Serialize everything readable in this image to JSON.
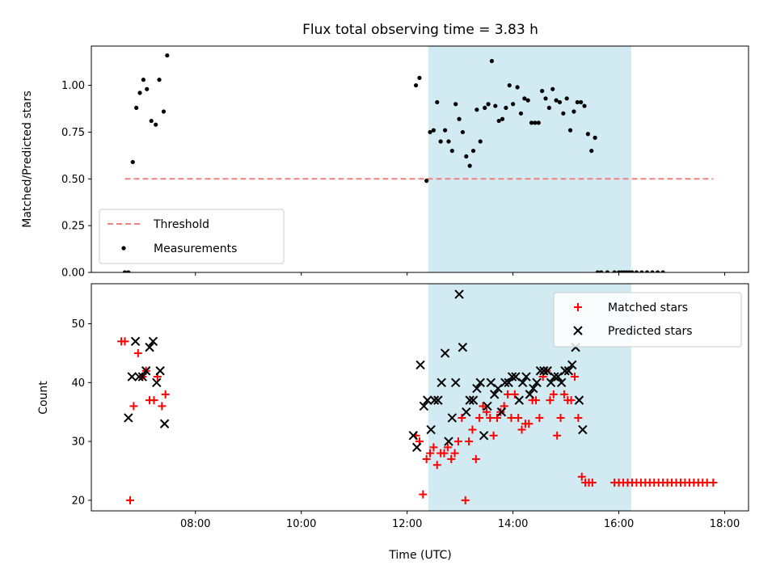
{
  "chart_data": [
    {
      "type": "scatter",
      "title": "Flux total observing time = 3.83 h",
      "xlabel": "",
      "ylabel": "Matched/Predicted stars",
      "xlim": [
        "06:02",
        "18:27"
      ],
      "ylim": [
        0,
        1.21
      ],
      "yticks": [
        "0.00",
        "0.25",
        "0.50",
        "0.75",
        "1.00"
      ],
      "highlight_span": {
        "start": "12:24",
        "end": "16:14",
        "color": "#add8e6"
      },
      "threshold": {
        "name": "Threshold",
        "y": 0.5,
        "x_start": "06:40",
        "x_end": "17:47",
        "color": "#f08080"
      },
      "legend": {
        "placement": "lower left",
        "entries": [
          "Threshold",
          "Measurements"
        ]
      },
      "series": [
        {
          "name": "Measurements",
          "color": "#000000",
          "points": [
            [
              "06:40",
              0.0
            ],
            [
              "06:44",
              0.0
            ],
            [
              "06:49",
              0.59
            ],
            [
              "06:53",
              0.88
            ],
            [
              "06:57",
              0.96
            ],
            [
              "07:01",
              1.03
            ],
            [
              "07:05",
              0.98
            ],
            [
              "07:10",
              0.81
            ],
            [
              "07:15",
              0.79
            ],
            [
              "07:19",
              1.03
            ],
            [
              "07:24",
              0.86
            ],
            [
              "07:28",
              1.16
            ],
            [
              "12:10",
              1.0
            ],
            [
              "12:14",
              1.04
            ],
            [
              "12:22",
              0.49
            ],
            [
              "12:26",
              0.75
            ],
            [
              "12:30",
              0.76
            ],
            [
              "12:34",
              0.91
            ],
            [
              "12:38",
              0.7
            ],
            [
              "12:43",
              0.76
            ],
            [
              "12:47",
              0.7
            ],
            [
              "12:51",
              0.65
            ],
            [
              "12:55",
              0.9
            ],
            [
              "12:59",
              0.82
            ],
            [
              "13:03",
              0.75
            ],
            [
              "13:07",
              0.62
            ],
            [
              "13:11",
              0.57
            ],
            [
              "13:15",
              0.65
            ],
            [
              "13:19",
              0.87
            ],
            [
              "13:23",
              0.7
            ],
            [
              "13:28",
              0.88
            ],
            [
              "13:32",
              0.9
            ],
            [
              "13:36",
              1.13
            ],
            [
              "13:40",
              0.89
            ],
            [
              "13:44",
              0.81
            ],
            [
              "13:48",
              0.82
            ],
            [
              "13:52",
              0.88
            ],
            [
              "13:56",
              1.0
            ],
            [
              "14:00",
              0.9
            ],
            [
              "14:05",
              0.99
            ],
            [
              "14:09",
              0.85
            ],
            [
              "14:13",
              0.93
            ],
            [
              "14:17",
              0.92
            ],
            [
              "14:21",
              0.8
            ],
            [
              "14:25",
              0.8
            ],
            [
              "14:29",
              0.8
            ],
            [
              "14:33",
              0.97
            ],
            [
              "14:37",
              0.93
            ],
            [
              "14:41",
              0.88
            ],
            [
              "14:45",
              0.98
            ],
            [
              "14:49",
              0.92
            ],
            [
              "14:53",
              0.91
            ],
            [
              "14:57",
              0.85
            ],
            [
              "15:01",
              0.93
            ],
            [
              "15:05",
              0.76
            ],
            [
              "15:09",
              0.86
            ],
            [
              "15:13",
              0.91
            ],
            [
              "15:17",
              0.91
            ],
            [
              "15:21",
              0.89
            ],
            [
              "15:25",
              0.74
            ],
            [
              "15:29",
              0.65
            ],
            [
              "15:33",
              0.72
            ],
            [
              "15:36",
              0.0
            ],
            [
              "15:40",
              0.0
            ],
            [
              "15:47",
              0.0
            ],
            [
              "15:55",
              0.0
            ],
            [
              "16:00",
              0.0
            ],
            [
              "16:03",
              0.0
            ],
            [
              "16:06",
              0.0
            ],
            [
              "16:09",
              0.0
            ],
            [
              "16:12",
              0.0
            ],
            [
              "16:15",
              0.0
            ],
            [
              "16:20",
              0.0
            ],
            [
              "16:26",
              0.0
            ],
            [
              "16:32",
              0.0
            ],
            [
              "16:38",
              0.0
            ],
            [
              "16:44",
              0.0
            ],
            [
              "16:50",
              0.0
            ]
          ]
        }
      ]
    },
    {
      "type": "scatter",
      "title": "",
      "xlabel": "Time (UTC)",
      "ylabel": "Count",
      "xlim": [
        "06:02",
        "18:27"
      ],
      "ylim": [
        18.2,
        56.8
      ],
      "yticks": [
        "20",
        "30",
        "40",
        "50"
      ],
      "xticks": [
        "08:00",
        "10:00",
        "12:00",
        "14:00",
        "16:00",
        "18:00"
      ],
      "highlight_span": {
        "start": "12:24",
        "end": "16:14",
        "color": "#add8e6"
      },
      "legend": {
        "placement": "upper right",
        "entries": [
          "Matched stars",
          "Predicted stars"
        ]
      },
      "series": [
        {
          "name": "Matched stars",
          "marker": "plus",
          "color": "#ff0000",
          "points": [
            [
              "06:36",
              47
            ],
            [
              "06:40",
              47
            ],
            [
              "06:46",
              20
            ],
            [
              "06:50",
              36
            ],
            [
              "06:55",
              45
            ],
            [
              "07:00",
              41
            ],
            [
              "07:04",
              42
            ],
            [
              "07:08",
              37
            ],
            [
              "07:13",
              37
            ],
            [
              "07:17",
              41
            ],
            [
              "07:22",
              36
            ],
            [
              "07:26",
              38
            ],
            [
              "12:10",
              31
            ],
            [
              "12:14",
              30
            ],
            [
              "12:18",
              21
            ],
            [
              "12:22",
              27
            ],
            [
              "12:26",
              28
            ],
            [
              "12:30",
              29
            ],
            [
              "12:34",
              26
            ],
            [
              "12:38",
              28
            ],
            [
              "12:42",
              28
            ],
            [
              "12:46",
              29
            ],
            [
              "12:50",
              27
            ],
            [
              "12:54",
              28
            ],
            [
              "12:58",
              30
            ],
            [
              "13:02",
              34
            ],
            [
              "13:06",
              20
            ],
            [
              "13:10",
              30
            ],
            [
              "13:14",
              32
            ],
            [
              "13:18",
              27
            ],
            [
              "13:22",
              34
            ],
            [
              "13:26",
              36
            ],
            [
              "13:30",
              35
            ],
            [
              "13:34",
              34
            ],
            [
              "13:38",
              31
            ],
            [
              "13:42",
              34
            ],
            [
              "13:46",
              35
            ],
            [
              "13:50",
              36
            ],
            [
              "13:54",
              38
            ],
            [
              "13:58",
              34
            ],
            [
              "14:02",
              38
            ],
            [
              "14:06",
              34
            ],
            [
              "14:10",
              32
            ],
            [
              "14:14",
              33
            ],
            [
              "14:18",
              33
            ],
            [
              "14:22",
              37
            ],
            [
              "14:26",
              37
            ],
            [
              "14:30",
              34
            ],
            [
              "14:34",
              41
            ],
            [
              "14:38",
              42
            ],
            [
              "14:42",
              37
            ],
            [
              "14:46",
              38
            ],
            [
              "14:50",
              31
            ],
            [
              "14:54",
              34
            ],
            [
              "14:58",
              38
            ],
            [
              "15:02",
              37
            ],
            [
              "15:06",
              37
            ],
            [
              "15:10",
              41
            ],
            [
              "15:14",
              34
            ],
            [
              "15:18",
              24
            ],
            [
              "15:22",
              23
            ],
            [
              "15:26",
              23
            ],
            [
              "15:30",
              23
            ],
            [
              "15:55",
              23
            ],
            [
              "16:00",
              23
            ],
            [
              "16:05",
              23
            ],
            [
              "16:10",
              23
            ],
            [
              "16:15",
              23
            ],
            [
              "16:20",
              23
            ],
            [
              "16:25",
              23
            ],
            [
              "16:30",
              23
            ],
            [
              "16:35",
              23
            ],
            [
              "16:40",
              23
            ],
            [
              "16:45",
              23
            ],
            [
              "16:50",
              23
            ],
            [
              "16:55",
              23
            ],
            [
              "17:00",
              23
            ],
            [
              "17:05",
              23
            ],
            [
              "17:10",
              23
            ],
            [
              "17:15",
              23
            ],
            [
              "17:20",
              23
            ],
            [
              "17:25",
              23
            ],
            [
              "17:30",
              23
            ],
            [
              "17:35",
              23
            ],
            [
              "17:40",
              23
            ],
            [
              "17:47",
              23
            ]
          ]
        },
        {
          "name": "Predicted stars",
          "marker": "x",
          "color": "#000000",
          "points": [
            [
              "06:44",
              34
            ],
            [
              "06:48",
              41
            ],
            [
              "06:52",
              47
            ],
            [
              "06:56",
              41
            ],
            [
              "07:00",
              41
            ],
            [
              "07:04",
              42
            ],
            [
              "07:08",
              46
            ],
            [
              "07:12",
              47
            ],
            [
              "07:16",
              40
            ],
            [
              "07:20",
              42
            ],
            [
              "07:25",
              33
            ],
            [
              "12:07",
              31
            ],
            [
              "12:11",
              29
            ],
            [
              "12:15",
              43
            ],
            [
              "12:19",
              36
            ],
            [
              "12:23",
              37
            ],
            [
              "12:27",
              32
            ],
            [
              "12:31",
              37
            ],
            [
              "12:35",
              37
            ],
            [
              "12:39",
              40
            ],
            [
              "12:43",
              45
            ],
            [
              "12:47",
              30
            ],
            [
              "12:51",
              34
            ],
            [
              "12:55",
              40
            ],
            [
              "12:59",
              55
            ],
            [
              "13:03",
              46
            ],
            [
              "13:07",
              35
            ],
            [
              "13:11",
              37
            ],
            [
              "13:15",
              37
            ],
            [
              "13:19",
              39
            ],
            [
              "13:23",
              40
            ],
            [
              "13:27",
              31
            ],
            [
              "13:31",
              36
            ],
            [
              "13:35",
              40
            ],
            [
              "13:39",
              38
            ],
            [
              "13:43",
              39
            ],
            [
              "13:47",
              35
            ],
            [
              "13:51",
              40
            ],
            [
              "13:55",
              40
            ],
            [
              "13:59",
              41
            ],
            [
              "14:03",
              41
            ],
            [
              "14:07",
              37
            ],
            [
              "14:11",
              40
            ],
            [
              "14:15",
              41
            ],
            [
              "14:19",
              38
            ],
            [
              "14:23",
              39
            ],
            [
              "14:27",
              40
            ],
            [
              "14:31",
              42
            ],
            [
              "14:35",
              42
            ],
            [
              "14:39",
              42
            ],
            [
              "14:43",
              40
            ],
            [
              "14:47",
              41
            ],
            [
              "14:51",
              41
            ],
            [
              "14:55",
              40
            ],
            [
              "14:59",
              42
            ],
            [
              "15:03",
              42
            ],
            [
              "15:07",
              43
            ],
            [
              "15:11",
              46
            ],
            [
              "15:15",
              37
            ],
            [
              "15:19",
              32
            ]
          ]
        }
      ]
    }
  ]
}
